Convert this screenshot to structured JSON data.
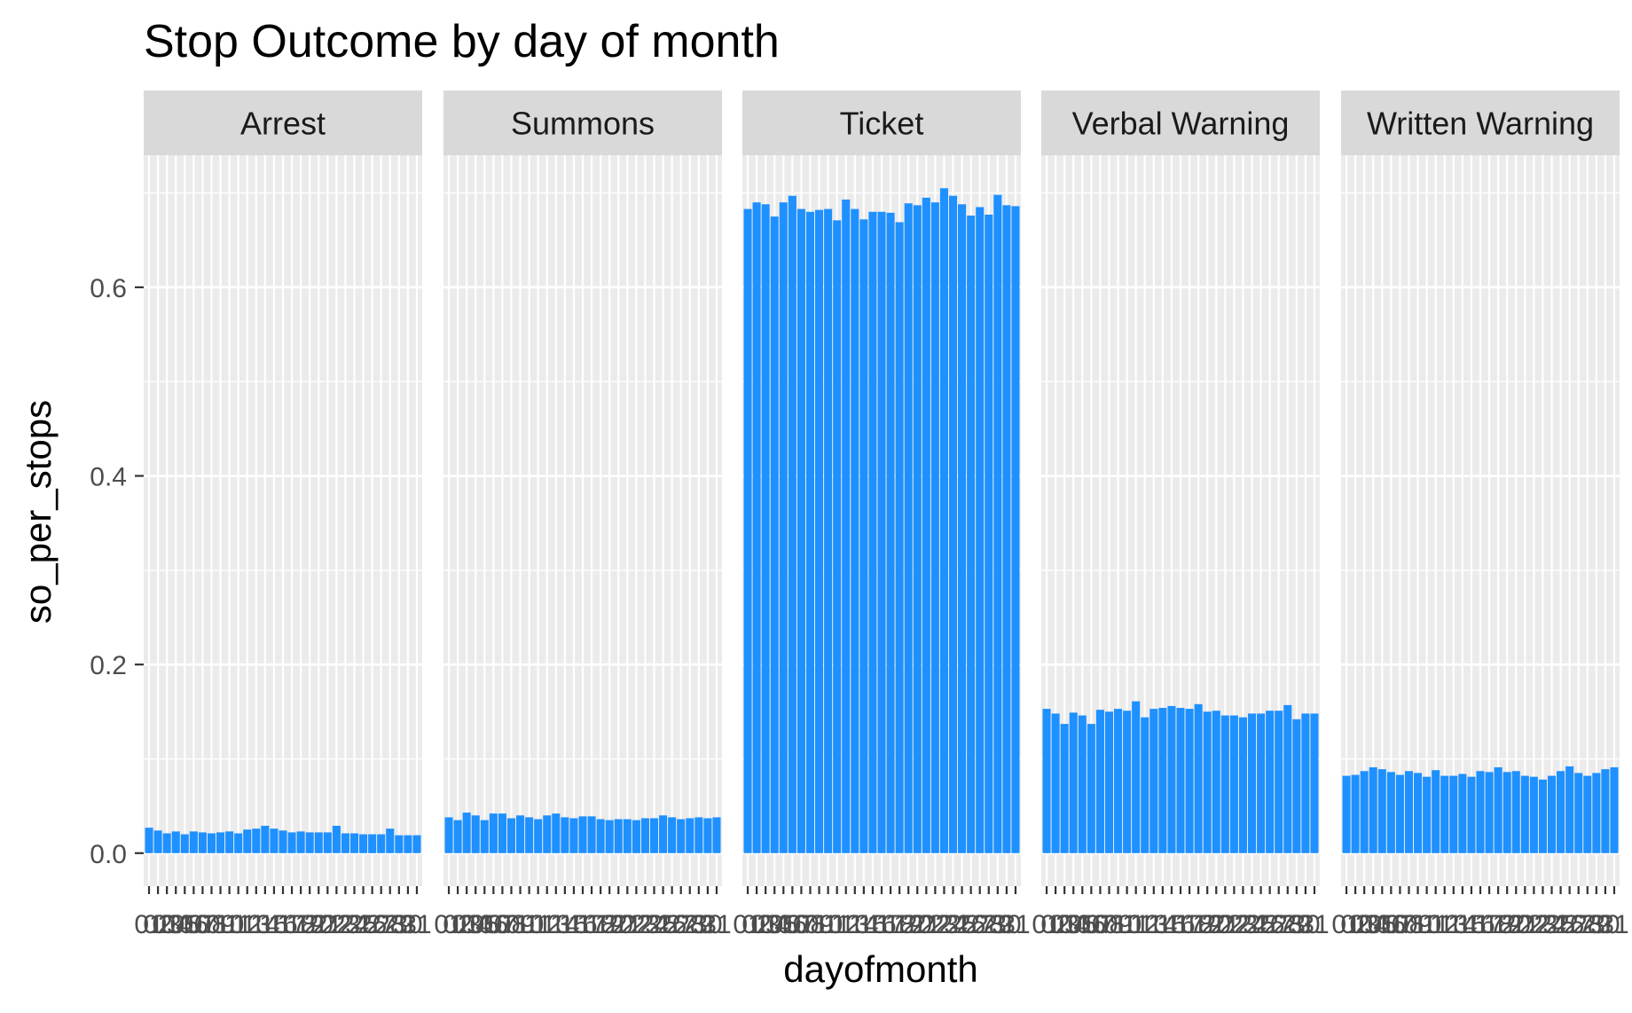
{
  "chart_data": {
    "type": "bar",
    "title": "Stop Outcome by day of month",
    "xlabel": "dayofmonth",
    "ylabel": "so_per_stops",
    "ylim": [
      -0.035,
      0.74
    ],
    "yticks": [
      "0.0",
      "0.2",
      "0.4",
      "0.6"
    ],
    "ytick_values": [
      0.0,
      0.2,
      0.4,
      0.6
    ],
    "grid": true,
    "bar_color": "#1E90FF",
    "panel_bg": "#EBEBEB",
    "strip_bg": "#D9D9D9",
    "categories": [
      "01",
      "02",
      "03",
      "04",
      "05",
      "06",
      "07",
      "08",
      "09",
      "10",
      "11",
      "12",
      "13",
      "14",
      "15",
      "16",
      "17",
      "18",
      "19",
      "20",
      "21",
      "22",
      "23",
      "24",
      "25",
      "26",
      "27",
      "28",
      "29",
      "30",
      "31"
    ],
    "panels": [
      {
        "name": "Arrest",
        "values": [
          0.027,
          0.024,
          0.021,
          0.023,
          0.02,
          0.023,
          0.022,
          0.021,
          0.022,
          0.023,
          0.021,
          0.025,
          0.026,
          0.029,
          0.026,
          0.024,
          0.022,
          0.023,
          0.022,
          0.022,
          0.022,
          0.029,
          0.021,
          0.021,
          0.02,
          0.02,
          0.02,
          0.026,
          0.019,
          0.019,
          0.019
        ]
      },
      {
        "name": "Summons",
        "values": [
          0.038,
          0.035,
          0.043,
          0.04,
          0.035,
          0.042,
          0.042,
          0.037,
          0.04,
          0.038,
          0.036,
          0.04,
          0.042,
          0.038,
          0.037,
          0.039,
          0.039,
          0.036,
          0.035,
          0.036,
          0.036,
          0.035,
          0.037,
          0.037,
          0.04,
          0.038,
          0.036,
          0.037,
          0.038,
          0.037,
          0.038
        ]
      },
      {
        "name": "Ticket",
        "values": [
          0.683,
          0.69,
          0.688,
          0.675,
          0.69,
          0.697,
          0.683,
          0.68,
          0.682,
          0.683,
          0.671,
          0.693,
          0.683,
          0.672,
          0.68,
          0.68,
          0.679,
          0.669,
          0.689,
          0.687,
          0.695,
          0.69,
          0.705,
          0.697,
          0.688,
          0.676,
          0.685,
          0.677,
          0.698,
          0.687,
          0.686
        ]
      },
      {
        "name": "Verbal Warning",
        "values": [
          0.153,
          0.148,
          0.137,
          0.149,
          0.146,
          0.137,
          0.152,
          0.15,
          0.153,
          0.151,
          0.161,
          0.144,
          0.153,
          0.154,
          0.156,
          0.154,
          0.153,
          0.158,
          0.15,
          0.151,
          0.146,
          0.146,
          0.144,
          0.148,
          0.148,
          0.151,
          0.151,
          0.157,
          0.142,
          0.148,
          0.148
        ]
      },
      {
        "name": "Written Warning",
        "values": [
          0.082,
          0.083,
          0.087,
          0.091,
          0.089,
          0.086,
          0.083,
          0.087,
          0.085,
          0.081,
          0.088,
          0.082,
          0.082,
          0.084,
          0.081,
          0.087,
          0.086,
          0.091,
          0.086,
          0.087,
          0.082,
          0.081,
          0.078,
          0.082,
          0.087,
          0.092,
          0.085,
          0.082,
          0.085,
          0.089,
          0.091
        ]
      }
    ]
  }
}
